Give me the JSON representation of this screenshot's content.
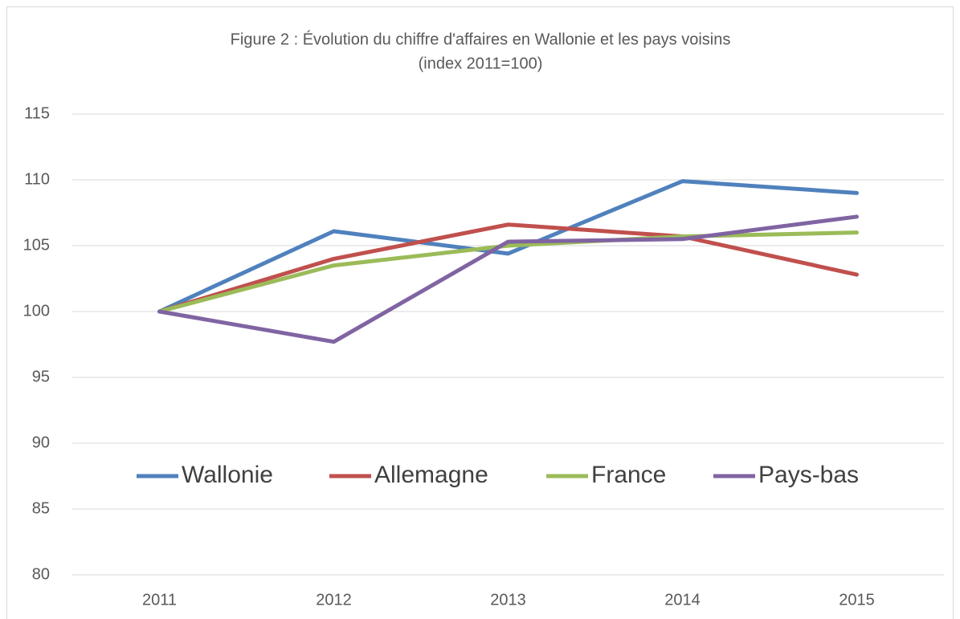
{
  "chart_data": {
    "type": "line",
    "title": "Figure 2 : Évolution du chiffre d'affaires en Wallonie et les pays voisins",
    "subtitle": "(index 2011=100)",
    "categories": [
      "2011",
      "2012",
      "2013",
      "2014",
      "2015"
    ],
    "series": [
      {
        "name": "Wallonie",
        "color": "#4f81bd",
        "values": [
          100,
          106.1,
          104.4,
          109.9,
          109.0
        ]
      },
      {
        "name": "Allemagne",
        "color": "#c0504d",
        "values": [
          100,
          104.0,
          106.6,
          105.7,
          102.8
        ]
      },
      {
        "name": "France",
        "color": "#9bbb59",
        "values": [
          100,
          103.5,
          105.0,
          105.7,
          106.0
        ]
      },
      {
        "name": "Pays-bas",
        "color": "#8064a2",
        "values": [
          100,
          97.7,
          105.3,
          105.5,
          107.2
        ]
      }
    ],
    "ylim": [
      80,
      115
    ],
    "yticks": [
      80,
      85,
      90,
      95,
      100,
      105,
      110,
      115
    ],
    "grid": true
  }
}
